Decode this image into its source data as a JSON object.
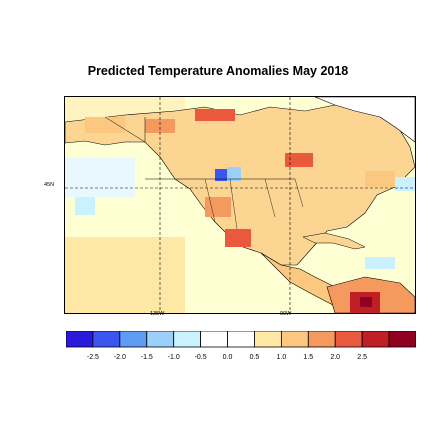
{
  "title": "Predicted Temperature Anomalies May 2018",
  "map": {
    "lat_labels": [
      "45N"
    ],
    "lon_labels": [
      "135W",
      "90W"
    ]
  },
  "colorbar": {
    "ticks": [
      "-2.5",
      "-2.0",
      "-1.5",
      "-1.0",
      "-0.5",
      "0.0",
      "0.5",
      "1.0",
      "1.5",
      "2.0",
      "2.5"
    ],
    "colors": [
      "#2b1ad9",
      "#3b56f0",
      "#5e9bf3",
      "#9cd0fa",
      "#c9f2fe",
      "#ffffff",
      "#ffffff",
      "#ffe7a6",
      "#fcc880",
      "#f59a5e",
      "#e9593d",
      "#c01f25",
      "#8f0021"
    ]
  },
  "colors": {
    "land_base": "#ffe7a6",
    "ocean_base": "#ffffcc",
    "coastline": "#000000"
  }
}
